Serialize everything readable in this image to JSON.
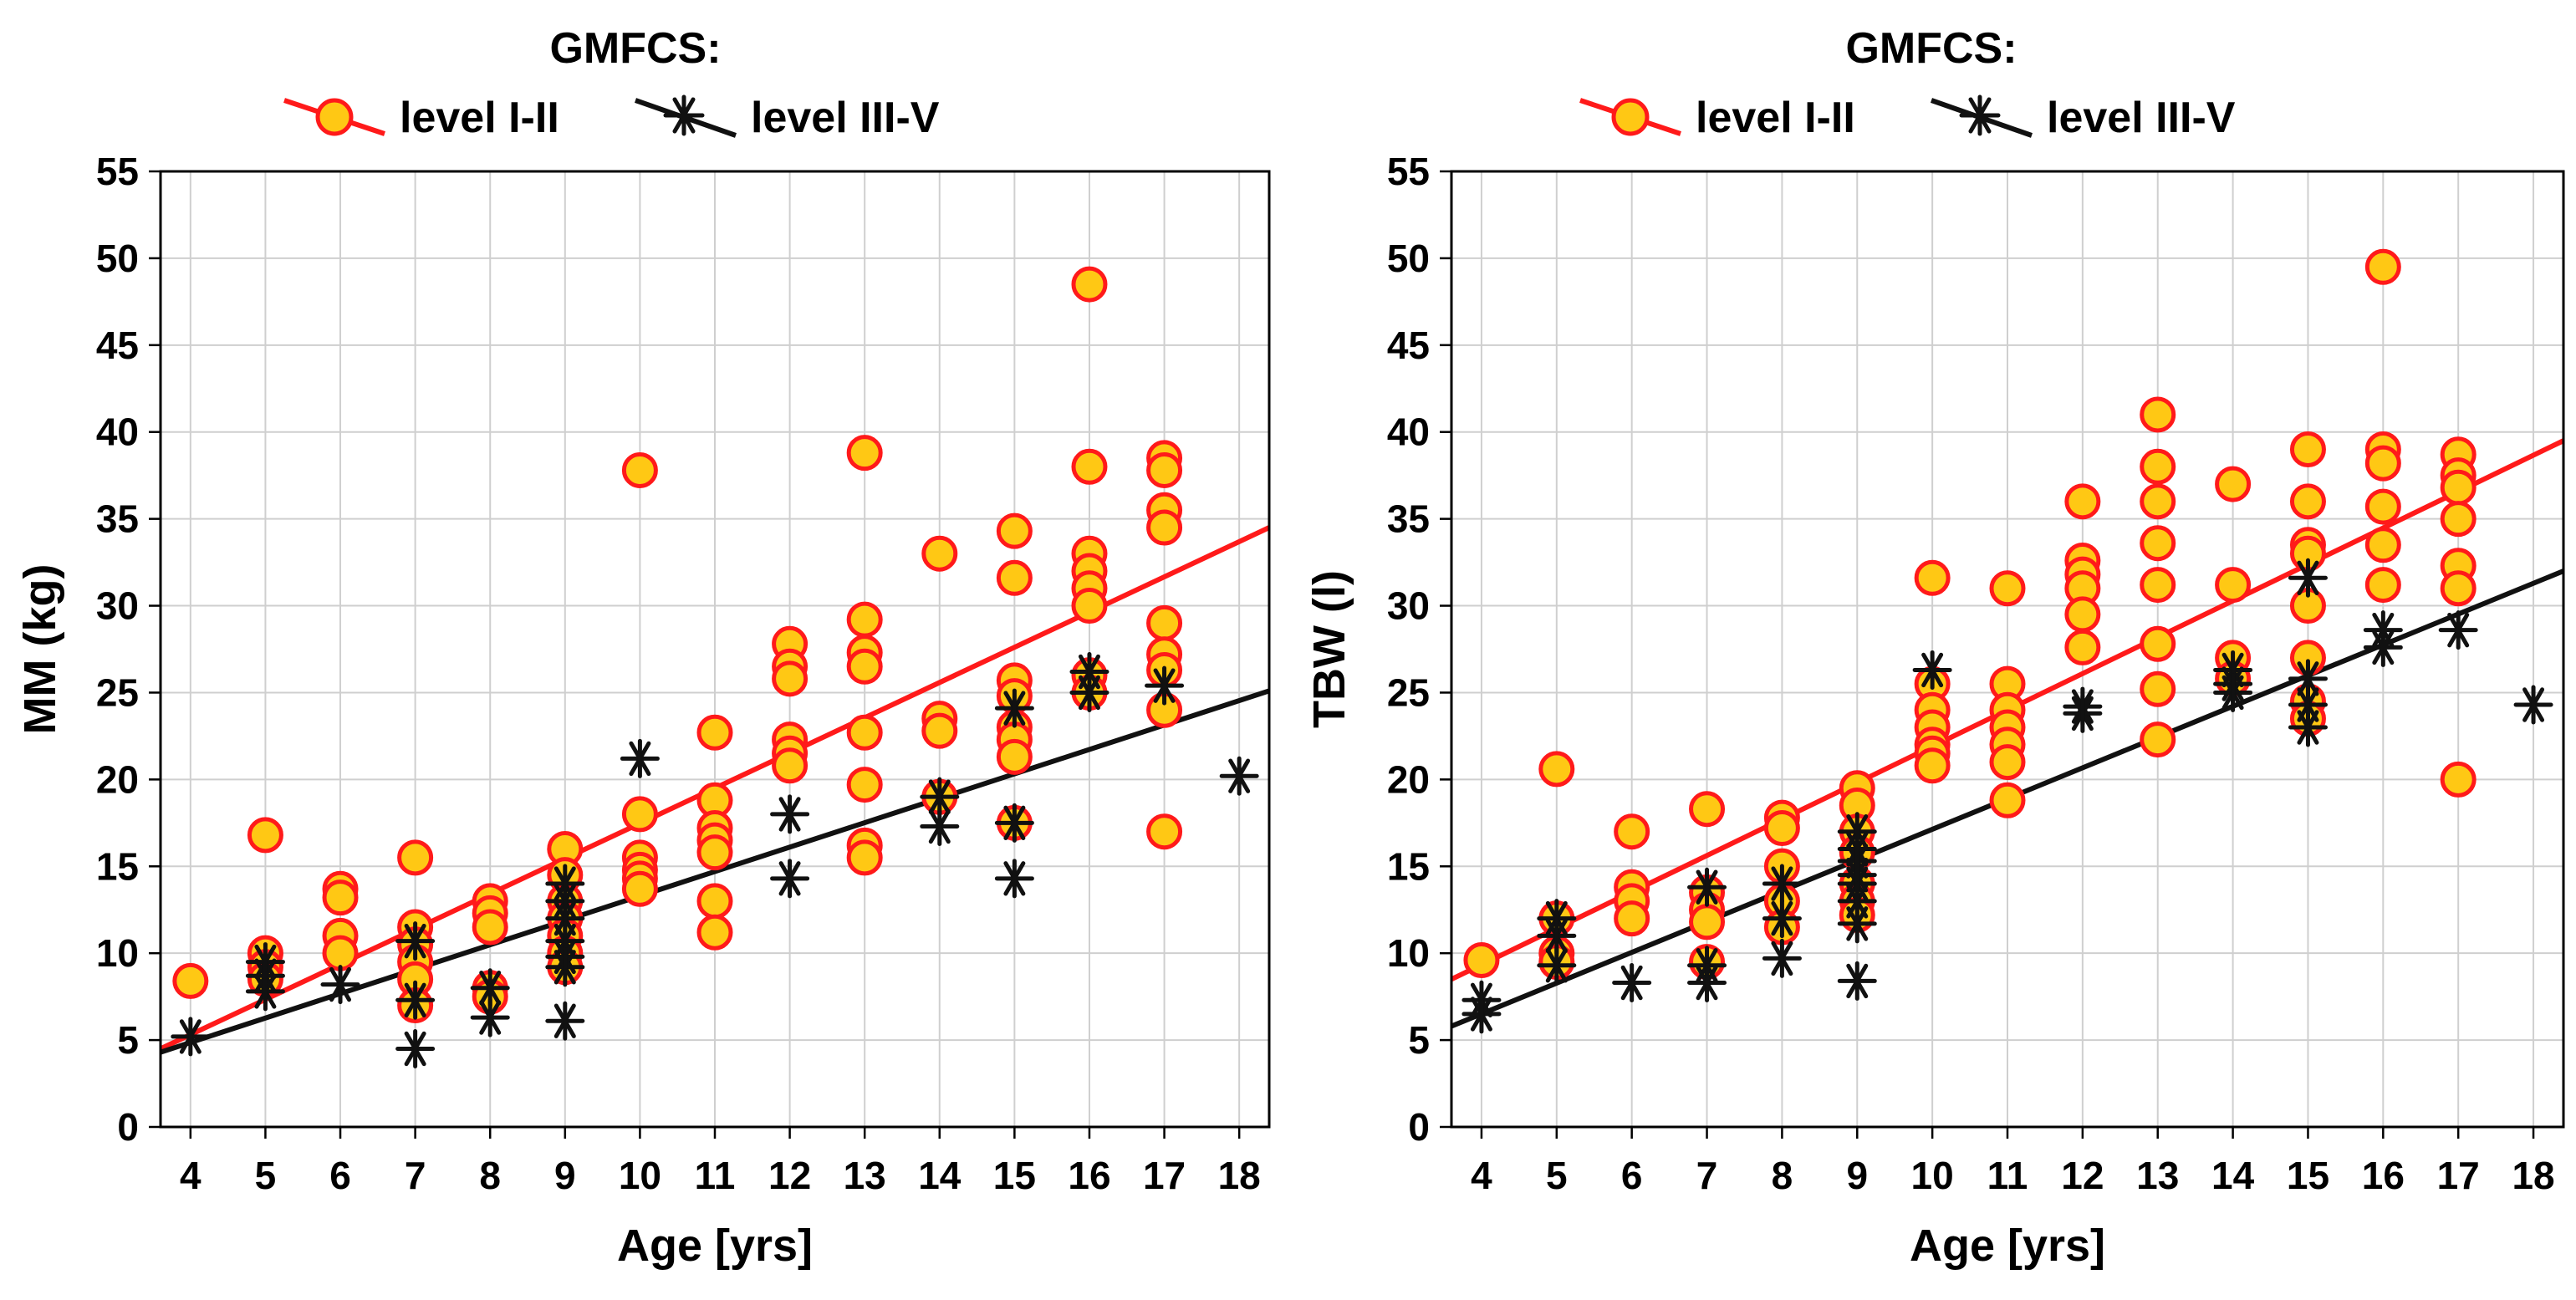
{
  "chart_data": [
    {
      "type": "scatter",
      "legend_title": "GMFCS:",
      "legend_position": "top-center",
      "xlabel": "Age [yrs]",
      "ylabel": "MM (kg)",
      "xlim": [
        3.6,
        18.4
      ],
      "ylim": [
        0,
        55
      ],
      "xticks": [
        4,
        5,
        6,
        7,
        8,
        9,
        10,
        11,
        12,
        13,
        14,
        15,
        16,
        17,
        18
      ],
      "yticks": [
        0,
        5,
        10,
        15,
        20,
        25,
        30,
        35,
        40,
        45,
        50,
        55
      ],
      "grid": true,
      "series": [
        {
          "name": "level I-II",
          "marker": "circle",
          "color": "#ff1a1a",
          "fill": "#ffc814",
          "points": [
            [
              4,
              8.4
            ],
            [
              5,
              16.8
            ],
            [
              5,
              10
            ],
            [
              5,
              9.2
            ],
            [
              5,
              8.5
            ],
            [
              6,
              13.7
            ],
            [
              6,
              13.2
            ],
            [
              6,
              11
            ],
            [
              6,
              10
            ],
            [
              7,
              15.5
            ],
            [
              7,
              11.5
            ],
            [
              7,
              10.5
            ],
            [
              7,
              9.5
            ],
            [
              7,
              8.5
            ],
            [
              7,
              7
            ],
            [
              8,
              13
            ],
            [
              8,
              12.3
            ],
            [
              8,
              11.5
            ],
            [
              8,
              8
            ],
            [
              8,
              7.5
            ],
            [
              9,
              16
            ],
            [
              9,
              14.5
            ],
            [
              9,
              13
            ],
            [
              9,
              12
            ],
            [
              9,
              11
            ],
            [
              9,
              10
            ],
            [
              9,
              9.2
            ],
            [
              10,
              37.8
            ],
            [
              10,
              18
            ],
            [
              10,
              15.5
            ],
            [
              10,
              14.8
            ],
            [
              10,
              14.3
            ],
            [
              10,
              13.7
            ],
            [
              11,
              22.7
            ],
            [
              11,
              18.8
            ],
            [
              11,
              17.2
            ],
            [
              11,
              16.5
            ],
            [
              11,
              15.8
            ],
            [
              11,
              13
            ],
            [
              11,
              11.2
            ],
            [
              12,
              27.8
            ],
            [
              12,
              26.5
            ],
            [
              12,
              25.8
            ],
            [
              12,
              22.3
            ],
            [
              12,
              21.5
            ],
            [
              12,
              20.8
            ],
            [
              13,
              38.8
            ],
            [
              13,
              29.2
            ],
            [
              13,
              27.3
            ],
            [
              13,
              26.5
            ],
            [
              13,
              22.7
            ],
            [
              13,
              19.7
            ],
            [
              13,
              16.2
            ],
            [
              13,
              15.5
            ],
            [
              14,
              33
            ],
            [
              14,
              23.5
            ],
            [
              14,
              22.8
            ],
            [
              14,
              19
            ],
            [
              15,
              34.3
            ],
            [
              15,
              31.6
            ],
            [
              15,
              25.7
            ],
            [
              15,
              24.8
            ],
            [
              15,
              23
            ],
            [
              15,
              22.3
            ],
            [
              15,
              21.3
            ],
            [
              15,
              17.5
            ],
            [
              16,
              48.5
            ],
            [
              16,
              38
            ],
            [
              16,
              33
            ],
            [
              16,
              32
            ],
            [
              16,
              31
            ],
            [
              16,
              30
            ],
            [
              16,
              26
            ],
            [
              16,
              25
            ],
            [
              17,
              38.5
            ],
            [
              17,
              37.8
            ],
            [
              17,
              35.5
            ],
            [
              17,
              34.5
            ],
            [
              17,
              29
            ],
            [
              17,
              27.2
            ],
            [
              17,
              26.3
            ],
            [
              17,
              24
            ],
            [
              17,
              17
            ]
          ],
          "fit": [
            [
              3.6,
              4.5
            ],
            [
              18.4,
              34.5
            ]
          ]
        },
        {
          "name": "level III-V",
          "marker": "asterisk",
          "color": "#111111",
          "points": [
            [
              4,
              5.2
            ],
            [
              5,
              9.5
            ],
            [
              5,
              8.7
            ],
            [
              5,
              7.8
            ],
            [
              6,
              8.2
            ],
            [
              7,
              10.7
            ],
            [
              7,
              7.3
            ],
            [
              7,
              4.5
            ],
            [
              8,
              8
            ],
            [
              8,
              6.3
            ],
            [
              9,
              14
            ],
            [
              9,
              13
            ],
            [
              9,
              12
            ],
            [
              9,
              10.7
            ],
            [
              9,
              9.8
            ],
            [
              9,
              9.2
            ],
            [
              9,
              6.1
            ],
            [
              10,
              21.2
            ],
            [
              12,
              18
            ],
            [
              12,
              14.3
            ],
            [
              14,
              19
            ],
            [
              14,
              17.3
            ],
            [
              15,
              24.1
            ],
            [
              15,
              17.5
            ],
            [
              15,
              14.3
            ],
            [
              16,
              26.2
            ],
            [
              16,
              25
            ],
            [
              17,
              25.4
            ],
            [
              18,
              20.2
            ]
          ],
          "fit": [
            [
              3.6,
              4.3
            ],
            [
              18.4,
              25.1
            ]
          ]
        }
      ]
    },
    {
      "type": "scatter",
      "legend_title": "GMFCS:",
      "legend_position": "top-center",
      "xlabel": "Age [yrs]",
      "ylabel": "TBW (l)",
      "xlim": [
        3.6,
        18.4
      ],
      "ylim": [
        0,
        55
      ],
      "xticks": [
        4,
        5,
        6,
        7,
        8,
        9,
        10,
        11,
        12,
        13,
        14,
        15,
        16,
        17,
        18
      ],
      "yticks": [
        0,
        5,
        10,
        15,
        20,
        25,
        30,
        35,
        40,
        45,
        50,
        55
      ],
      "grid": true,
      "series": [
        {
          "name": "level I-II",
          "marker": "circle",
          "color": "#ff1a1a",
          "fill": "#ffc814",
          "points": [
            [
              4,
              9.6
            ],
            [
              5,
              20.6
            ],
            [
              5,
              12
            ],
            [
              5,
              10
            ],
            [
              5,
              9.5
            ],
            [
              6,
              17
            ],
            [
              6,
              13.8
            ],
            [
              6,
              13
            ],
            [
              6,
              12
            ],
            [
              7,
              18.3
            ],
            [
              7,
              13.5
            ],
            [
              7,
              12.5
            ],
            [
              7,
              11.8
            ],
            [
              7,
              9.5
            ],
            [
              8,
              17.8
            ],
            [
              8,
              17.2
            ],
            [
              8,
              15
            ],
            [
              8,
              13
            ],
            [
              8,
              11.5
            ],
            [
              9,
              19.5
            ],
            [
              9,
              18.5
            ],
            [
              9,
              17
            ],
            [
              9,
              15.8
            ],
            [
              9,
              14
            ],
            [
              9,
              13
            ],
            [
              9,
              12.2
            ],
            [
              10,
              31.6
            ],
            [
              10,
              25.5
            ],
            [
              10,
              24
            ],
            [
              10,
              23
            ],
            [
              10,
              22
            ],
            [
              10,
              21.5
            ],
            [
              10,
              20.8
            ],
            [
              11,
              31
            ],
            [
              11,
              25.5
            ],
            [
              11,
              24
            ],
            [
              11,
              23
            ],
            [
              11,
              22
            ],
            [
              11,
              21
            ],
            [
              11,
              18.8
            ],
            [
              12,
              36
            ],
            [
              12,
              32.6
            ],
            [
              12,
              31.8
            ],
            [
              12,
              31
            ],
            [
              12,
              29.5
            ],
            [
              12,
              27.6
            ],
            [
              13,
              41
            ],
            [
              13,
              38
            ],
            [
              13,
              36
            ],
            [
              13,
              33.6
            ],
            [
              13,
              31.2
            ],
            [
              13,
              27.8
            ],
            [
              13,
              25.2
            ],
            [
              13,
              22.3
            ],
            [
              14,
              37
            ],
            [
              14,
              31.2
            ],
            [
              14,
              27
            ],
            [
              14,
              25.8
            ],
            [
              15,
              39
            ],
            [
              15,
              36
            ],
            [
              15,
              33.5
            ],
            [
              15,
              33
            ],
            [
              15,
              30
            ],
            [
              15,
              27
            ],
            [
              15,
              24.5
            ],
            [
              15,
              23.5
            ],
            [
              16,
              49.5
            ],
            [
              16,
              39
            ],
            [
              16,
              38.2
            ],
            [
              16,
              35.7
            ],
            [
              16,
              33.5
            ],
            [
              16,
              31.2
            ],
            [
              17,
              38.7
            ],
            [
              17,
              37.5
            ],
            [
              17,
              36.8
            ],
            [
              17,
              35
            ],
            [
              17,
              32.3
            ],
            [
              17,
              31
            ],
            [
              17,
              20
            ]
          ],
          "fit": [
            [
              3.6,
              8.5
            ],
            [
              18.4,
              39.5
            ]
          ]
        },
        {
          "name": "level III-V",
          "marker": "asterisk",
          "color": "#111111",
          "points": [
            [
              4,
              7.3
            ],
            [
              4,
              6.5
            ],
            [
              5,
              12
            ],
            [
              5,
              11
            ],
            [
              5,
              9.3
            ],
            [
              6,
              8.3
            ],
            [
              7,
              13.8
            ],
            [
              7,
              9.3
            ],
            [
              7,
              8.3
            ],
            [
              8,
              14
            ],
            [
              8,
              12
            ],
            [
              8,
              9.7
            ],
            [
              9,
              17
            ],
            [
              9,
              16
            ],
            [
              9,
              15.3
            ],
            [
              9,
              14.5
            ],
            [
              9,
              14
            ],
            [
              9,
              13
            ],
            [
              9,
              11.7
            ],
            [
              9,
              8.4
            ],
            [
              10,
              26.3
            ],
            [
              12,
              24.2
            ],
            [
              12,
              23.8
            ],
            [
              14,
              26.3
            ],
            [
              14,
              25.5
            ],
            [
              14,
              25
            ],
            [
              15,
              31.6
            ],
            [
              15,
              25.8
            ],
            [
              15,
              24.3
            ],
            [
              15,
              23
            ],
            [
              16,
              28.6
            ],
            [
              16,
              27.6
            ],
            [
              17,
              28.6
            ],
            [
              18,
              24.3
            ]
          ],
          "fit": [
            [
              3.6,
              5.8
            ],
            [
              18.4,
              32
            ]
          ]
        }
      ]
    }
  ]
}
